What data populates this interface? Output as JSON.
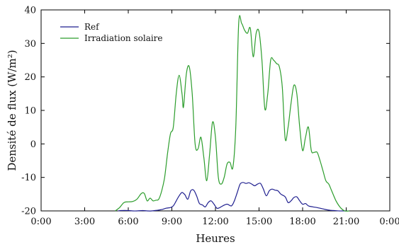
{
  "chart_data": {
    "type": "line",
    "xlabel": "Heures",
    "ylabel": "Densité de flux (W/m²)",
    "x_ticks": [
      "0:00",
      "3:00",
      "6:00",
      "9:00",
      "12:00",
      "15:00",
      "18:00",
      "21:00",
      "0:00"
    ],
    "y_ticks": [
      "-20",
      "-10",
      "0",
      "10",
      "20",
      "30",
      "40"
    ],
    "xlim": [
      0,
      24
    ],
    "ylim": [
      -20,
      40
    ],
    "grid": false,
    "legend_position": "top-left",
    "series": [
      {
        "name": "Ref",
        "color": "#1f1f8f",
        "x": [
          5.3,
          5.5,
          6.0,
          6.3,
          6.6,
          7.0,
          7.3,
          7.6,
          8.0,
          8.3,
          8.6,
          8.9,
          9.1,
          9.3,
          9.5,
          9.7,
          9.9,
          10.1,
          10.3,
          10.5,
          10.7,
          10.9,
          11.1,
          11.3,
          11.5,
          11.7,
          11.9,
          12.1,
          12.3,
          12.5,
          12.8,
          13.1,
          13.3,
          13.5,
          13.7,
          13.9,
          14.1,
          14.3,
          14.5,
          14.7,
          14.9,
          15.1,
          15.3,
          15.5,
          15.7,
          15.9,
          16.1,
          16.3,
          16.5,
          16.8,
          17.0,
          17.2,
          17.4,
          17.6,
          17.8,
          18.0,
          18.2,
          18.4,
          18.7,
          19.0,
          19.3,
          19.6,
          19.9,
          20.2,
          20.5,
          20.8,
          21.0
        ],
        "y": [
          -20,
          -19.9,
          -19.9,
          -20,
          -20,
          -19.9,
          -20,
          -20,
          -19.8,
          -19.6,
          -19.2,
          -19.0,
          -18.5,
          -17.0,
          -15.5,
          -14.5,
          -15.2,
          -16.5,
          -14.0,
          -13.8,
          -15.5,
          -17.8,
          -18.2,
          -18.8,
          -17.5,
          -17.0,
          -18.0,
          -19.2,
          -19.0,
          -18.5,
          -18.0,
          -18.5,
          -17.0,
          -14.5,
          -12.0,
          -11.5,
          -11.8,
          -11.6,
          -12.0,
          -12.5,
          -12.0,
          -11.8,
          -13.5,
          -15.5,
          -14.0,
          -13.5,
          -13.8,
          -14.0,
          -15.0,
          -15.8,
          -17.5,
          -17.0,
          -16.0,
          -15.8,
          -17.0,
          -18.0,
          -17.8,
          -18.5,
          -18.8,
          -19.0,
          -19.3,
          -19.6,
          -19.8,
          -19.9,
          -20.0,
          -20.0,
          -20.0
        ]
      },
      {
        "name": "Irradiation solaire",
        "color": "#2c9d2c",
        "x": [
          5.1,
          5.4,
          5.7,
          6.0,
          6.3,
          6.6,
          6.9,
          7.1,
          7.3,
          7.5,
          7.7,
          7.9,
          8.1,
          8.3,
          8.5,
          8.7,
          8.9,
          9.1,
          9.3,
          9.5,
          9.7,
          9.8,
          10.0,
          10.2,
          10.4,
          10.6,
          10.8,
          11.0,
          11.2,
          11.4,
          11.6,
          11.8,
          12.0,
          12.2,
          12.4,
          12.6,
          12.8,
          13.0,
          13.2,
          13.4,
          13.6,
          13.8,
          14.0,
          14.2,
          14.4,
          14.6,
          14.8,
          15.0,
          15.2,
          15.4,
          15.6,
          15.8,
          16.0,
          16.2,
          16.4,
          16.6,
          16.8,
          17.0,
          17.2,
          17.4,
          17.6,
          17.8,
          18.0,
          18.2,
          18.4,
          18.6,
          18.8,
          19.0,
          19.2,
          19.4,
          19.6,
          19.8,
          20.0,
          20.3,
          20.6,
          20.9,
          21.2
        ],
        "y": [
          -20,
          -19.0,
          -17.5,
          -17.3,
          -17.2,
          -16.5,
          -14.8,
          -14.8,
          -17.0,
          -16.2,
          -17.0,
          -16.8,
          -16.5,
          -14.0,
          -10.0,
          -3.0,
          3.0,
          5.0,
          15.0,
          20.5,
          15.0,
          11.0,
          21.0,
          23.0,
          15.0,
          0.0,
          -1.5,
          2.0,
          -4.0,
          -11.0,
          -3.0,
          6.5,
          2.0,
          -10.0,
          -12.0,
          -10.0,
          -6.0,
          -5.5,
          -7.0,
          5.0,
          36.0,
          36.0,
          34.0,
          33.0,
          34.5,
          26.0,
          33.0,
          33.5,
          25.0,
          10.5,
          15.0,
          25.0,
          25.0,
          24.0,
          23.0,
          17.0,
          1.5,
          5.0,
          12.0,
          17.5,
          15.0,
          5.0,
          -2.0,
          2.0,
          5.0,
          -2.0,
          -2.5,
          -2.5,
          -5.0,
          -8.0,
          -11.0,
          -12.0,
          -14.0,
          -17.0,
          -19.0,
          -20.0,
          -20.0
        ]
      }
    ]
  }
}
